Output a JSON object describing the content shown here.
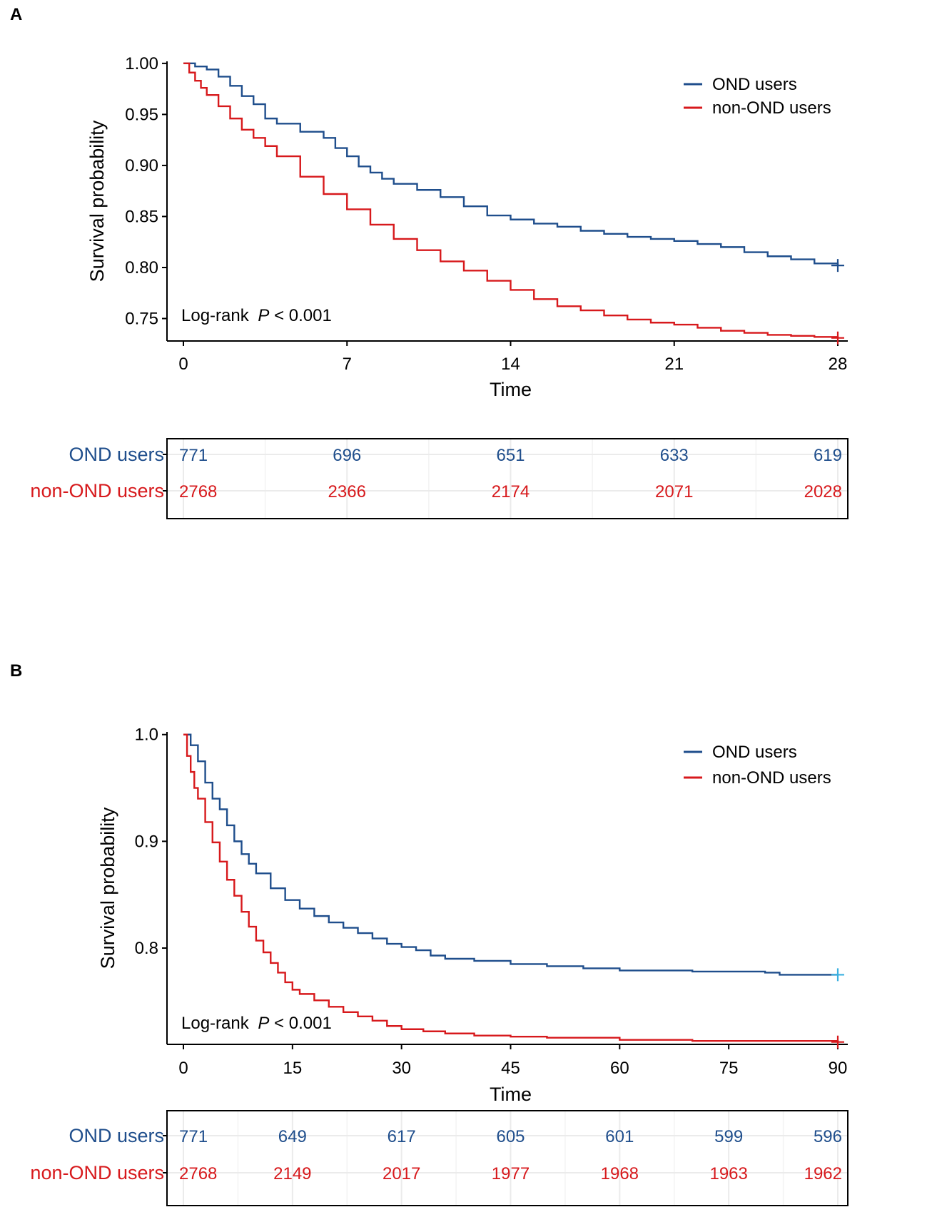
{
  "chart_data": [
    {
      "panel": "A",
      "type": "line",
      "subtype": "kaplan-meier",
      "xlabel": "Time",
      "ylabel": "Survival probability",
      "xlim": [
        0,
        28
      ],
      "ylim": [
        0.728,
        1.002
      ],
      "xticks": [
        0,
        7,
        14,
        21,
        28
      ],
      "xtick_labels": [
        "0",
        "7",
        "14",
        "21",
        "28"
      ],
      "yticks": [
        0.75,
        0.8,
        0.85,
        0.9,
        0.95,
        1.0
      ],
      "ytick_labels": [
        "0.75",
        "0.80",
        "0.85",
        "0.90",
        "0.95",
        "1.00"
      ],
      "legend": {
        "position": "top-right",
        "entries": [
          "OND users",
          "non-OND users"
        ]
      },
      "annotation": {
        "prefix": "Log-rank ",
        "italic": "P",
        "suffix": " < 0.001"
      },
      "series": [
        {
          "name": "OND users",
          "color": "#1f4e8c",
          "x": [
            0,
            0.5,
            1,
            1.5,
            2,
            2.5,
            3,
            3.5,
            4,
            5,
            6,
            6.5,
            7,
            7.5,
            8,
            8.5,
            9,
            10,
            11,
            12,
            13,
            14,
            15,
            16,
            17,
            18,
            19,
            20,
            21,
            22,
            23,
            24,
            25,
            26,
            27,
            28
          ],
          "y": [
            1.0,
            0.997,
            0.994,
            0.987,
            0.978,
            0.968,
            0.96,
            0.946,
            0.941,
            0.933,
            0.927,
            0.917,
            0.909,
            0.899,
            0.893,
            0.887,
            0.882,
            0.876,
            0.869,
            0.86,
            0.851,
            0.847,
            0.843,
            0.84,
            0.836,
            0.833,
            0.83,
            0.828,
            0.826,
            0.823,
            0.82,
            0.815,
            0.811,
            0.808,
            0.804,
            0.802
          ]
        },
        {
          "name": "non-OND users",
          "color": "#d7191c",
          "x": [
            0,
            0.25,
            0.5,
            0.75,
            1,
            1.5,
            2,
            2.5,
            3,
            3.5,
            4,
            5,
            6,
            7,
            8,
            9,
            10,
            11,
            12,
            13,
            14,
            15,
            16,
            17,
            18,
            19,
            20,
            21,
            22,
            23,
            24,
            25,
            26,
            27,
            28
          ],
          "y": [
            1.0,
            0.991,
            0.983,
            0.976,
            0.969,
            0.958,
            0.946,
            0.935,
            0.927,
            0.919,
            0.909,
            0.889,
            0.872,
            0.857,
            0.842,
            0.828,
            0.817,
            0.806,
            0.797,
            0.787,
            0.778,
            0.769,
            0.762,
            0.758,
            0.753,
            0.749,
            0.746,
            0.744,
            0.741,
            0.738,
            0.736,
            0.734,
            0.733,
            0.732,
            0.731
          ]
        }
      ],
      "risk_table": {
        "times": [
          0,
          7,
          14,
          21,
          28
        ],
        "rows": [
          {
            "label": "OND users",
            "color": "#1f4e8c",
            "values": [
              "771",
              "696",
              "651",
              "633",
              "619"
            ]
          },
          {
            "label": "non-OND users",
            "color": "#d7191c",
            "values": [
              "2768",
              "2366",
              "2174",
              "2071",
              "2028"
            ]
          }
        ]
      }
    },
    {
      "panel": "B",
      "type": "line",
      "subtype": "kaplan-meier",
      "xlabel": "Time",
      "ylabel": "Survival probability",
      "xlim": [
        0,
        90
      ],
      "ylim": [
        0.7098,
        1.0025
      ],
      "xticks": [
        0,
        15,
        30,
        45,
        60,
        75,
        90
      ],
      "xtick_labels": [
        "0",
        "15",
        "30",
        "45",
        "60",
        "75",
        "90"
      ],
      "yticks": [
        0.8,
        0.9,
        1.0
      ],
      "ytick_labels": [
        "0.8",
        "0.9",
        "1.0"
      ],
      "legend": {
        "position": "top-right",
        "entries": [
          "OND users",
          "non-OND users"
        ]
      },
      "annotation": {
        "prefix": "Log-rank ",
        "italic": "P",
        "suffix": " < 0.001"
      },
      "series": [
        {
          "name": "OND users",
          "color": "#1f4e8c",
          "censor_color": "#3ab0e0",
          "x": [
            0,
            1,
            2,
            3,
            4,
            5,
            6,
            7,
            8,
            9,
            10,
            12,
            14,
            16,
            18,
            20,
            22,
            24,
            26,
            28,
            30,
            32,
            34,
            36,
            40,
            45,
            50,
            55,
            60,
            70,
            80,
            82,
            90
          ],
          "y": [
            1.0,
            0.99,
            0.975,
            0.955,
            0.94,
            0.93,
            0.915,
            0.9,
            0.888,
            0.879,
            0.87,
            0.856,
            0.845,
            0.837,
            0.83,
            0.824,
            0.819,
            0.814,
            0.809,
            0.804,
            0.801,
            0.798,
            0.793,
            0.79,
            0.788,
            0.785,
            0.783,
            0.781,
            0.779,
            0.778,
            0.777,
            0.775,
            0.775
          ]
        },
        {
          "name": "non-OND users",
          "color": "#d7191c",
          "x": [
            0,
            0.5,
            1,
            1.5,
            2,
            3,
            4,
            5,
            6,
            7,
            8,
            9,
            10,
            11,
            12,
            13,
            14,
            15,
            16,
            18,
            20,
            22,
            24,
            26,
            28,
            30,
            33,
            36,
            40,
            45,
            50,
            55,
            60,
            70,
            80,
            90
          ],
          "y": [
            1.0,
            0.98,
            0.965,
            0.95,
            0.94,
            0.918,
            0.899,
            0.881,
            0.864,
            0.849,
            0.834,
            0.82,
            0.807,
            0.796,
            0.786,
            0.777,
            0.768,
            0.761,
            0.757,
            0.751,
            0.745,
            0.74,
            0.736,
            0.732,
            0.727,
            0.724,
            0.722,
            0.72,
            0.718,
            0.717,
            0.716,
            0.716,
            0.714,
            0.713,
            0.713,
            0.712
          ]
        }
      ],
      "risk_table": {
        "times": [
          0,
          15,
          30,
          45,
          60,
          75,
          90
        ],
        "rows": [
          {
            "label": "OND users",
            "color": "#1f4e8c",
            "values": [
              "771",
              "649",
              "617",
              "605",
              "601",
              "599",
              "596"
            ]
          },
          {
            "label": "non-OND users",
            "color": "#d7191c",
            "values": [
              "2768",
              "2149",
              "2017",
              "1977",
              "1968",
              "1963",
              "1962"
            ]
          }
        ]
      }
    }
  ]
}
